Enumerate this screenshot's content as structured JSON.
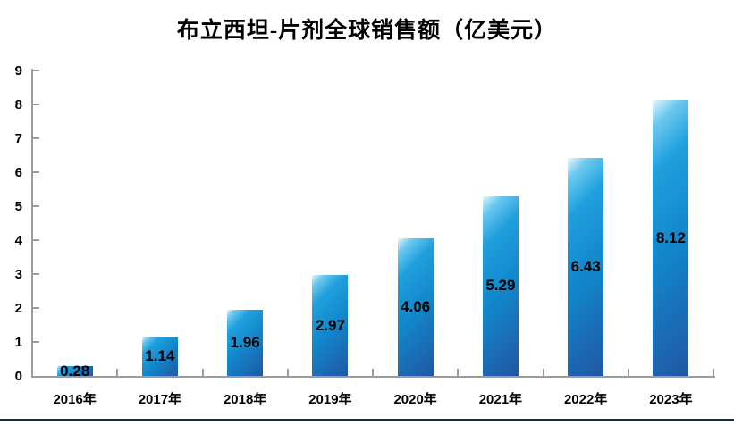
{
  "chart_data": {
    "type": "bar",
    "title": "布立西坦-片剂全球销售额（亿美元）",
    "categories": [
      "2016年",
      "2017年",
      "2018年",
      "2019年",
      "2020年",
      "2021年",
      "2022年",
      "2023年"
    ],
    "values": [
      0.28,
      1.14,
      1.96,
      2.97,
      4.06,
      5.29,
      6.43,
      8.12
    ],
    "value_labels": [
      "0.28",
      "1.14",
      "1.96",
      "2.97",
      "4.06",
      "5.29",
      "6.43",
      "8.12"
    ],
    "xlabel": "",
    "ylabel": "",
    "ylim": [
      0,
      9
    ],
    "y_tick_labels": [
      "0",
      "1",
      "2",
      "3",
      "4",
      "5",
      "6",
      "7",
      "8",
      "9"
    ],
    "grid": false,
    "legend": "none",
    "data_label_position": "inside-center",
    "bar_fill_style": "diagonal gradient, light cyan top-left to dark blue bottom-right"
  },
  "colors": {
    "background": "#ffffff",
    "text": "#000000",
    "axis_line": "#9c9c9c",
    "bottom_rule": "#1b2a4a",
    "bar_highlight": "#e8f6fd",
    "bar_light": "#6cc8ee",
    "bar_cyan": "#1f9fdd",
    "bar_mid": "#1285ca",
    "bar_dark": "#2156a3"
  }
}
